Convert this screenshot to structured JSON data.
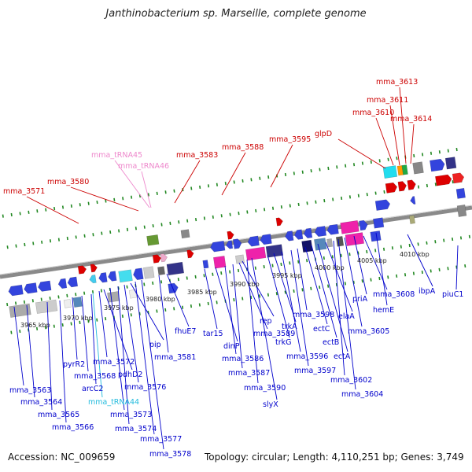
{
  "title": "Janthinobacterium sp. Marseille, complete genome",
  "accession": "Accession: NC_009659",
  "topology": "Topology: circular; Length: 4,110,251 bp; Genes: 3,749",
  "colors": {
    "red_label": "#cc0000",
    "blue_label": "#0000cc",
    "pink_label": "#ee88cc",
    "cyan_label": "#22bbdd",
    "backbone": "#8a8a8a",
    "ticks": "#228822"
  },
  "kbp_ticks": [
    "3965 kbp",
    "3970 kbp",
    "3975 kbp",
    "3980 kbp",
    "3985 kbp",
    "3990 kbp",
    "3995 kbp",
    "4000 kbp",
    "4005 kbp",
    "4010 kbp"
  ],
  "top_labels": [
    {
      "text": "mma_3571",
      "color": "red"
    },
    {
      "text": "mma_3580",
      "color": "red"
    },
    {
      "text": "mma_tRNA45",
      "color": "pink"
    },
    {
      "text": "mma_tRNA46",
      "color": "pink"
    },
    {
      "text": "mma_3583",
      "color": "red"
    },
    {
      "text": "mma_3588",
      "color": "red"
    },
    {
      "text": "mma_3595",
      "color": "red"
    },
    {
      "text": "glpD",
      "color": "red"
    },
    {
      "text": "mma_3610",
      "color": "red"
    },
    {
      "text": "mma_3611",
      "color": "red"
    },
    {
      "text": "mma_3613",
      "color": "red"
    },
    {
      "text": "mma_3614",
      "color": "red"
    }
  ],
  "bottom_labels": [
    {
      "text": "mma_3563",
      "color": "blue"
    },
    {
      "text": "mma_3564",
      "color": "blue"
    },
    {
      "text": "mma_3565",
      "color": "blue"
    },
    {
      "text": "mma_3566",
      "color": "blue"
    },
    {
      "text": "pyrR2",
      "color": "blue"
    },
    {
      "text": "mma_3568",
      "color": "blue"
    },
    {
      "text": "arcC2",
      "color": "blue"
    },
    {
      "text": "mma_tRNA44",
      "color": "cyan"
    },
    {
      "text": "mma_3572",
      "color": "blue"
    },
    {
      "text": "pdhD2",
      "color": "blue"
    },
    {
      "text": "mma_3573",
      "color": "blue"
    },
    {
      "text": "mma_3574",
      "color": "blue"
    },
    {
      "text": "mma_3576",
      "color": "blue"
    },
    {
      "text": "pip",
      "color": "blue"
    },
    {
      "text": "mma_3577",
      "color": "blue"
    },
    {
      "text": "mma_3578",
      "color": "blue"
    },
    {
      "text": "mma_3581",
      "color": "blue"
    },
    {
      "text": "fhuE7",
      "color": "blue"
    },
    {
      "text": "tar15",
      "color": "blue"
    },
    {
      "text": "dinP",
      "color": "blue"
    },
    {
      "text": "mma_3586",
      "color": "blue"
    },
    {
      "text": "mma_3587",
      "color": "blue"
    },
    {
      "text": "mma_3589",
      "color": "blue"
    },
    {
      "text": "rep",
      "color": "blue"
    },
    {
      "text": "mma_3590",
      "color": "blue"
    },
    {
      "text": "slyX",
      "color": "blue"
    },
    {
      "text": "trkG",
      "color": "blue"
    },
    {
      "text": "trkA",
      "color": "blue"
    },
    {
      "text": "mma_3596",
      "color": "blue"
    },
    {
      "text": "mma_3597",
      "color": "blue"
    },
    {
      "text": "mma_3598",
      "color": "blue"
    },
    {
      "text": "ectC",
      "color": "blue"
    },
    {
      "text": "ectB",
      "color": "blue"
    },
    {
      "text": "ectA",
      "color": "blue"
    },
    {
      "text": "elaA",
      "color": "blue"
    },
    {
      "text": "mma_3602",
      "color": "blue"
    },
    {
      "text": "mma_3604",
      "color": "blue"
    },
    {
      "text": "mma_3605",
      "color": "blue"
    },
    {
      "text": "priA",
      "color": "blue"
    },
    {
      "text": "mma_3608",
      "color": "blue"
    },
    {
      "text": "hemE",
      "color": "blue"
    },
    {
      "text": "ibpA",
      "color": "blue"
    },
    {
      "text": "piuC1",
      "color": "blue"
    }
  ]
}
